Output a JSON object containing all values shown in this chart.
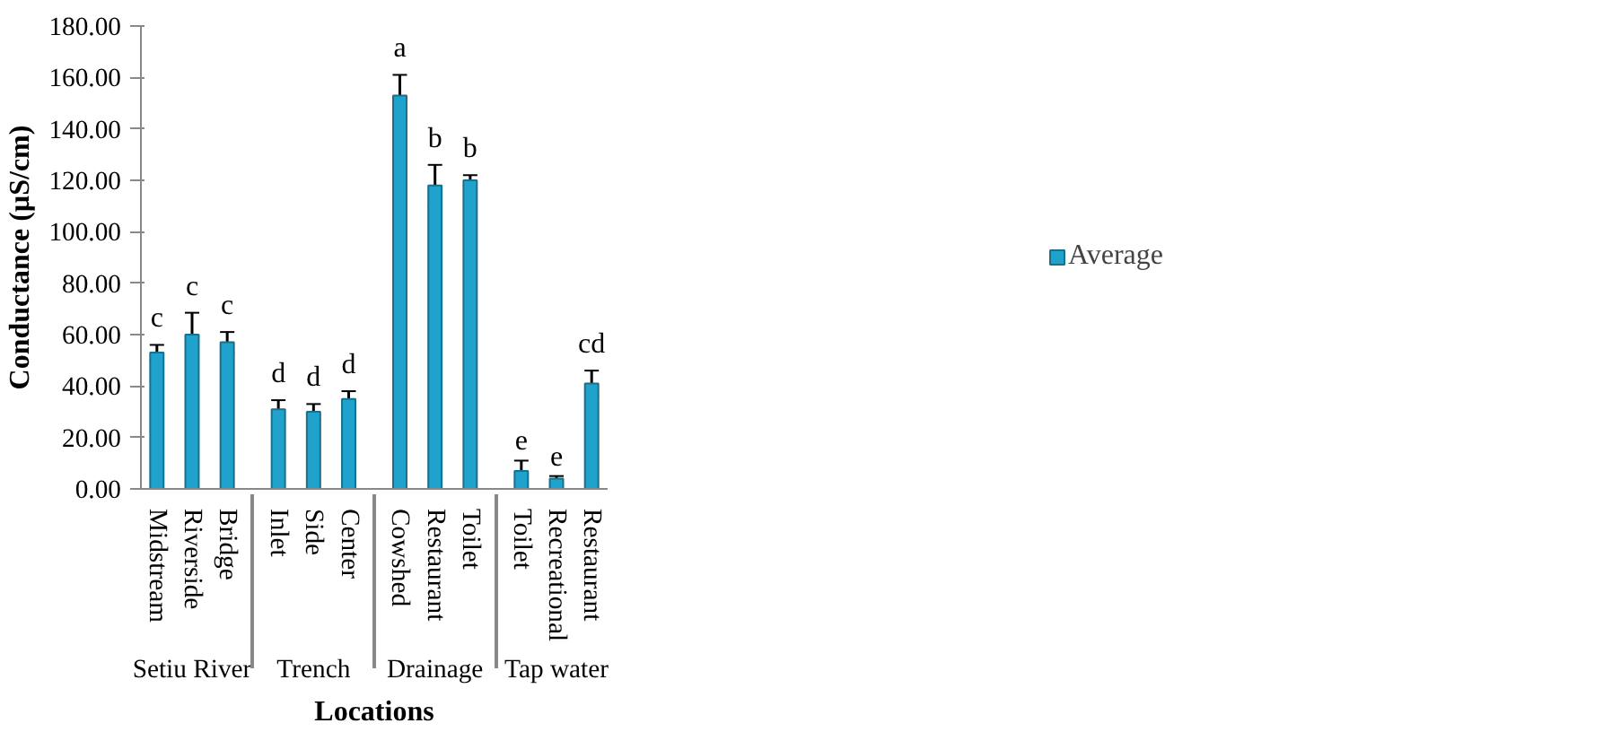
{
  "chart_data": {
    "type": "bar",
    "xlabel": "Locations",
    "ylabel": "Conductance (µS/cm)",
    "categories": [
      "Midstream",
      "Riverside",
      "Bridge",
      "Inlet",
      "Side",
      "Center",
      "Cowshed",
      "Restaurant",
      "Toilet",
      "Toilet",
      "Recreational",
      "Restaurant"
    ],
    "annotations": [
      "Setiu River",
      "Trench",
      "Drainage",
      "Tap water"
    ],
    "series": [
      {
        "name": "Average",
        "color": "#1fa3cc",
        "values": [
          53,
          60,
          57,
          31,
          30,
          35,
          153,
          118,
          120,
          7,
          4,
          41
        ],
        "errors": [
          3,
          8.5,
          4,
          3.5,
          3,
          3,
          8,
          8,
          2,
          4,
          1,
          5
        ],
        "value_labels": [
          "c",
          "c",
          "c",
          "d",
          "d",
          "d",
          "a",
          "b",
          "b",
          "e",
          "e",
          "cd"
        ]
      }
    ],
    "ylim": [
      0,
      180
    ],
    "yticks": [
      {
        "value": 0,
        "label": "0.00"
      },
      {
        "value": 20,
        "label": "20.00"
      },
      {
        "value": 40,
        "label": "40.00"
      },
      {
        "value": 60,
        "label": "60.00"
      },
      {
        "value": 80,
        "label": "80.00"
      },
      {
        "value": 100,
        "label": "100.00"
      },
      {
        "value": 120,
        "label": "120.00"
      },
      {
        "value": 140,
        "label": "140.00"
      },
      {
        "value": 160,
        "label": "160.00"
      },
      {
        "value": 180,
        "label": "180.00"
      }
    ],
    "grid": false,
    "legend": "right"
  }
}
